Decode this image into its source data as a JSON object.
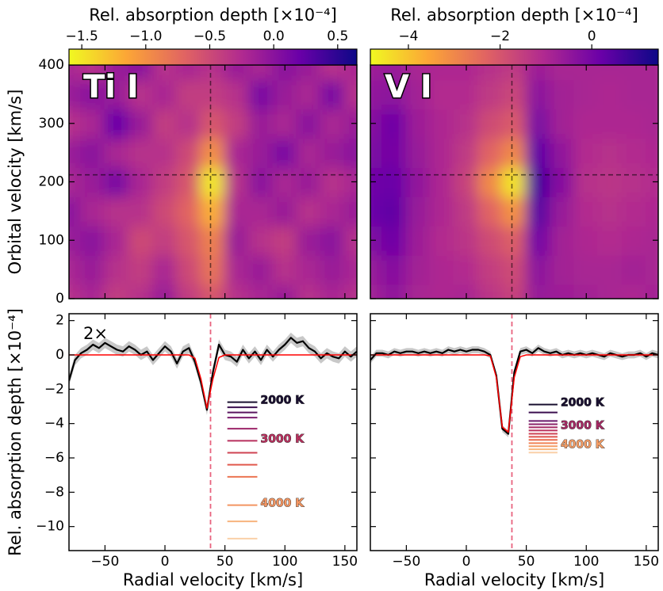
{
  "chart_data": [
    {
      "type": "heatmap",
      "label": "Ti I",
      "colorbar_label": "Rel. absorption depth [×10⁻⁴]",
      "ylabel": "Orbital velocity [km/s]",
      "colormap": [
        "#f0f921",
        "#fca636",
        "#e16462",
        "#b12a90",
        "#6a00a8",
        "#0d0887"
      ],
      "clim": [
        -1.6,
        0.65
      ],
      "cbar_ticks": [
        {
          "value": -1.5,
          "label": "−1.5"
        },
        {
          "value": -1,
          "label": "−1.0"
        },
        {
          "value": -0.5,
          "label": "−0.5"
        },
        {
          "value": 0,
          "label": "0.0"
        },
        {
          "value": 0.5,
          "label": "0.5"
        }
      ],
      "x": [
        -80,
        -60,
        -40,
        -20,
        0,
        20,
        40,
        60,
        80,
        100,
        120,
        140,
        160
      ],
      "y": [
        0,
        50,
        100,
        150,
        200,
        250,
        300,
        350,
        400
      ],
      "z": [
        [
          -0.3,
          -0.2,
          -0.4,
          -0.3,
          -0.1,
          -0.4,
          -0.6,
          -0.3,
          -0.2,
          -0.1,
          -0.3,
          -0.2,
          -0.3
        ],
        [
          -0.2,
          -0.1,
          -0.3,
          -0.4,
          -0.2,
          -0.5,
          -0.8,
          -0.2,
          -0.1,
          -0.3,
          -0.2,
          -0.1,
          -0.2
        ],
        [
          -0.1,
          0.0,
          -0.2,
          -0.5,
          -0.4,
          -0.6,
          -0.9,
          -0.1,
          -0.3,
          -0.4,
          -0.1,
          0.0,
          -0.3
        ],
        [
          0.0,
          -0.2,
          -0.3,
          -0.3,
          -0.5,
          -0.7,
          -1.2,
          -0.2,
          -0.2,
          -0.1,
          -0.3,
          -0.2,
          -0.1
        ],
        [
          -0.2,
          -0.1,
          0.1,
          -0.2,
          -0.4,
          -0.6,
          -1.5,
          -0.3,
          0.0,
          -0.2,
          -0.1,
          -0.3,
          -0.2
        ],
        [
          -0.1,
          0.0,
          -0.2,
          -0.3,
          -0.3,
          -0.5,
          -1.0,
          -0.2,
          -0.1,
          0.1,
          -0.2,
          -0.1,
          0.0
        ],
        [
          -0.3,
          -0.2,
          0.2,
          -0.1,
          -0.4,
          -0.3,
          -0.6,
          -0.4,
          -0.1,
          -0.2,
          0.0,
          -0.2,
          -0.1
        ],
        [
          -0.1,
          0.0,
          -0.1,
          -0.3,
          -0.2,
          -0.4,
          -0.4,
          -0.3,
          0.1,
          -0.1,
          -0.2,
          0.1,
          -0.3
        ],
        [
          -0.2,
          -0.3,
          -0.1,
          0.0,
          -0.3,
          -0.2,
          -0.3,
          -0.1,
          -0.2,
          0.0,
          -0.1,
          -0.3,
          -0.2
        ]
      ],
      "xlim": [
        -80,
        160
      ],
      "ylim": [
        0,
        400
      ],
      "xticks": [
        -50,
        0,
        50,
        100,
        150
      ],
      "yticks": [
        0,
        100,
        200,
        300,
        400
      ],
      "ytick_labels": true,
      "vline": 38,
      "hline": 212
    },
    {
      "type": "heatmap",
      "label": "V I",
      "colorbar_label": "Rel. absorption depth [×10⁻⁴]",
      "colormap": [
        "#f0f921",
        "#fca636",
        "#e16462",
        "#b12a90",
        "#6a00a8",
        "#0d0887"
      ],
      "clim": [
        -4.83,
        1.45
      ],
      "cbar_ticks": [
        {
          "value": -4,
          "label": "−4"
        },
        {
          "value": -2,
          "label": "−2"
        },
        0
      ],
      "x": [
        -80,
        -60,
        -40,
        -20,
        0,
        20,
        40,
        60,
        80,
        100,
        120,
        140,
        160
      ],
      "y": [
        0,
        50,
        100,
        150,
        200,
        250,
        300,
        350,
        400
      ],
      "z": [
        [
          -0.8,
          -0.5,
          -0.9,
          -1.0,
          -0.9,
          -1.3,
          -1.6,
          -0.6,
          -0.7,
          -0.8,
          -0.9,
          -1.0,
          -0.8
        ],
        [
          -0.6,
          -0.3,
          -0.8,
          -1.0,
          -1.1,
          -1.5,
          -1.8,
          -0.4,
          -0.8,
          -0.9,
          -0.9,
          -0.8,
          -0.9
        ],
        [
          -0.2,
          0.1,
          -0.7,
          -1.1,
          -1.3,
          -1.8,
          -2.2,
          0.0,
          -0.8,
          -1.0,
          -1.1,
          -1.0,
          -0.9
        ],
        [
          0.2,
          0.3,
          -0.6,
          -1.0,
          -1.4,
          -2.3,
          -3.2,
          0.4,
          -0.6,
          -1.1,
          -1.2,
          -1.1,
          -1.0
        ],
        [
          0.1,
          0.2,
          -0.5,
          -1.0,
          -1.6,
          -3.0,
          -4.5,
          0.6,
          -0.3,
          -1.2,
          -1.3,
          -1.2,
          -1.1
        ],
        [
          -0.1,
          0.0,
          -0.6,
          -1.0,
          -1.4,
          -2.3,
          -3.0,
          0.3,
          -0.5,
          -1.1,
          -1.2,
          -1.1,
          -1.0
        ],
        [
          -0.3,
          0.1,
          -0.7,
          -1.0,
          -1.2,
          -1.8,
          -2.1,
          -0.1,
          -0.8,
          -1.0,
          -1.0,
          -1.0,
          -0.9
        ],
        [
          -0.5,
          -0.4,
          -0.8,
          -1.1,
          -1.1,
          -1.4,
          -1.7,
          -0.4,
          -0.8,
          -0.9,
          -1.0,
          -0.9,
          -0.9
        ],
        [
          -0.7,
          -0.6,
          -0.9,
          -1.0,
          -1.0,
          -1.2,
          -1.4,
          -0.7,
          -0.9,
          -0.9,
          -0.9,
          -0.9,
          -0.9
        ]
      ],
      "xlim": [
        -80,
        160
      ],
      "ylim": [
        0,
        400
      ],
      "xticks": [
        -50,
        0,
        50,
        100,
        150
      ],
      "yticks": [
        0,
        100,
        200,
        300,
        400
      ],
      "ytick_labels": false,
      "vline": 38,
      "hline": 212
    },
    {
      "type": "line",
      "annotation": "2×",
      "xlabel": "Radial velocity [km/s]",
      "ylabel": "Rel. absorption depth [×10⁻⁴]",
      "x": [
        -80,
        -75,
        -70,
        -65,
        -60,
        -55,
        -50,
        -45,
        -40,
        -35,
        -30,
        -25,
        -20,
        -15,
        -10,
        -5,
        0,
        5,
        10,
        15,
        20,
        25,
        30,
        35,
        40,
        45,
        50,
        55,
        60,
        65,
        70,
        75,
        80,
        85,
        90,
        95,
        100,
        105,
        110,
        115,
        120,
        125,
        130,
        135,
        140,
        145,
        150,
        155,
        160
      ],
      "series": [
        {
          "color": "#000000",
          "error": 0.3,
          "values": [
            -1.5,
            -0.3,
            0.1,
            0.3,
            0.6,
            0.4,
            0.7,
            0.5,
            0.3,
            0.2,
            0.5,
            0.3,
            0.0,
            0.2,
            -0.3,
            0.1,
            0.5,
            0.2,
            -0.5,
            0.2,
            0.4,
            -0.4,
            -1.6,
            -3.2,
            -1.0,
            0.6,
            0.0,
            -0.1,
            -0.4,
            0.3,
            -0.2,
            0.2,
            -0.3,
            0.3,
            -0.1,
            0.3,
            0.6,
            1.0,
            0.7,
            0.8,
            0.4,
            0.2,
            -0.2,
            0.1,
            -0.1,
            -0.2,
            0.2,
            -0.1,
            0.2
          ]
        },
        {
          "color": "#ff0000",
          "values": [
            0,
            0,
            0,
            0,
            0,
            0,
            0,
            0,
            0,
            0,
            0,
            0,
            0,
            0,
            0,
            0,
            0,
            0,
            0,
            0,
            0,
            -0.2,
            -1.4,
            -3.1,
            -1.4,
            -0.15,
            0,
            0,
            0,
            0,
            0,
            0,
            0,
            0,
            0,
            0,
            0,
            0,
            0,
            0,
            0,
            0,
            0,
            0,
            0,
            0,
            0,
            0,
            0
          ]
        }
      ],
      "temperature_lines": {
        "x_range": [
          52,
          77
        ],
        "values": [
          -2.75,
          -3.05,
          -3.35,
          -3.65,
          -4.3,
          -5.0,
          -5.7,
          -6.4,
          -7.1,
          -8.75,
          -9.7,
          -10.7
        ],
        "colors": [
          "#1a1030",
          "#3b0f4f",
          "#5a1660",
          "#7a1d6e",
          "#9c2569",
          "#b8305e",
          "#cf4352",
          "#e1594c",
          "#ec7452",
          "#f39561",
          "#f7b47e",
          "#fad0a8"
        ],
        "labels": [
          "2000 K",
          null,
          null,
          null,
          null,
          "3000 K",
          null,
          null,
          null,
          "4000 K",
          null,
          null
        ]
      },
      "xlim": [
        -80,
        160
      ],
      "ylim": [
        -11.4,
        2.4
      ],
      "xticks": [
        {
          "value": -50,
          "label": "−50"
        },
        0,
        50,
        100,
        150
      ],
      "yticks": [
        {
          "value": -10,
          "label": "−10"
        },
        {
          "value": -8,
          "label": "−8"
        },
        {
          "value": -6,
          "label": "−6"
        },
        {
          "value": -4,
          "label": "−4"
        },
        {
          "value": -2,
          "label": "−2"
        },
        0,
        2
      ],
      "ytick_labels": true,
      "vline": 38
    },
    {
      "type": "line",
      "xlabel": "Radial velocity [km/s]",
      "x": [
        -80,
        -75,
        -70,
        -65,
        -60,
        -55,
        -50,
        -45,
        -40,
        -35,
        -30,
        -25,
        -20,
        -15,
        -10,
        -5,
        0,
        5,
        10,
        15,
        20,
        25,
        30,
        35,
        40,
        45,
        50,
        55,
        60,
        65,
        70,
        75,
        80,
        85,
        90,
        95,
        100,
        105,
        110,
        115,
        120,
        125,
        130,
        135,
        140,
        145,
        150,
        155,
        160
      ],
      "series": [
        {
          "color": "#000000",
          "error": 0.2,
          "values": [
            -0.3,
            0.1,
            0.1,
            0.0,
            0.2,
            0.1,
            0.2,
            0.2,
            0.1,
            0.2,
            0.1,
            0.2,
            0.1,
            0.3,
            0.2,
            0.3,
            0.2,
            0.3,
            0.3,
            0.2,
            0.0,
            -1.2,
            -4.3,
            -4.6,
            -1.0,
            0.2,
            0.3,
            0.1,
            0.4,
            0.2,
            0.1,
            0.2,
            0.0,
            0.1,
            0.0,
            0.1,
            0.0,
            0.1,
            0.0,
            -0.1,
            0.1,
            0.0,
            -0.1,
            0.0,
            0.0,
            0.1,
            -0.1,
            0.1,
            0.0
          ]
        },
        {
          "color": "#ff0000",
          "values": [
            0,
            0,
            0,
            0,
            0,
            0,
            0,
            0,
            0,
            0,
            0,
            0,
            0,
            0,
            0,
            0,
            0,
            0,
            0,
            0,
            -0.05,
            -1.3,
            -4.2,
            -4.5,
            -1.3,
            -0.1,
            0,
            0,
            0,
            0,
            0,
            0,
            0,
            0,
            0,
            0,
            0,
            0,
            0,
            0,
            0,
            0,
            0,
            0,
            0,
            0,
            0,
            0,
            0
          ]
        }
      ],
      "temperature_lines": {
        "x_range": [
          52,
          76
        ],
        "values": [
          -2.89,
          -3.35,
          -3.85,
          -4.04,
          -4.22,
          -4.4,
          -4.59,
          -4.77,
          -4.95,
          -5.14,
          -5.32,
          -5.5,
          -5.69
        ],
        "colors": [
          "#1a1030",
          "#3b0f4f",
          "#6a1a6b",
          "#8a2268",
          "#a52a64",
          "#bb325d",
          "#cd4153",
          "#dc524c",
          "#e8684d",
          "#f08256",
          "#f49d66",
          "#f8b77f",
          "#fad0a8"
        ],
        "labels": [
          "2000 K",
          null,
          null,
          null,
          "3000 K",
          null,
          null,
          null,
          null,
          null,
          "4000 K",
          null,
          null
        ]
      },
      "xlim": [
        -80,
        160
      ],
      "ylim": [
        -11.4,
        2.4
      ],
      "xticks": [
        {
          "value": -50,
          "label": "−50"
        },
        0,
        50,
        100,
        150
      ],
      "yticks": [
        -10,
        -8,
        -6,
        -4,
        -2,
        0,
        2
      ],
      "ytick_labels": false,
      "vline": 38
    }
  ]
}
